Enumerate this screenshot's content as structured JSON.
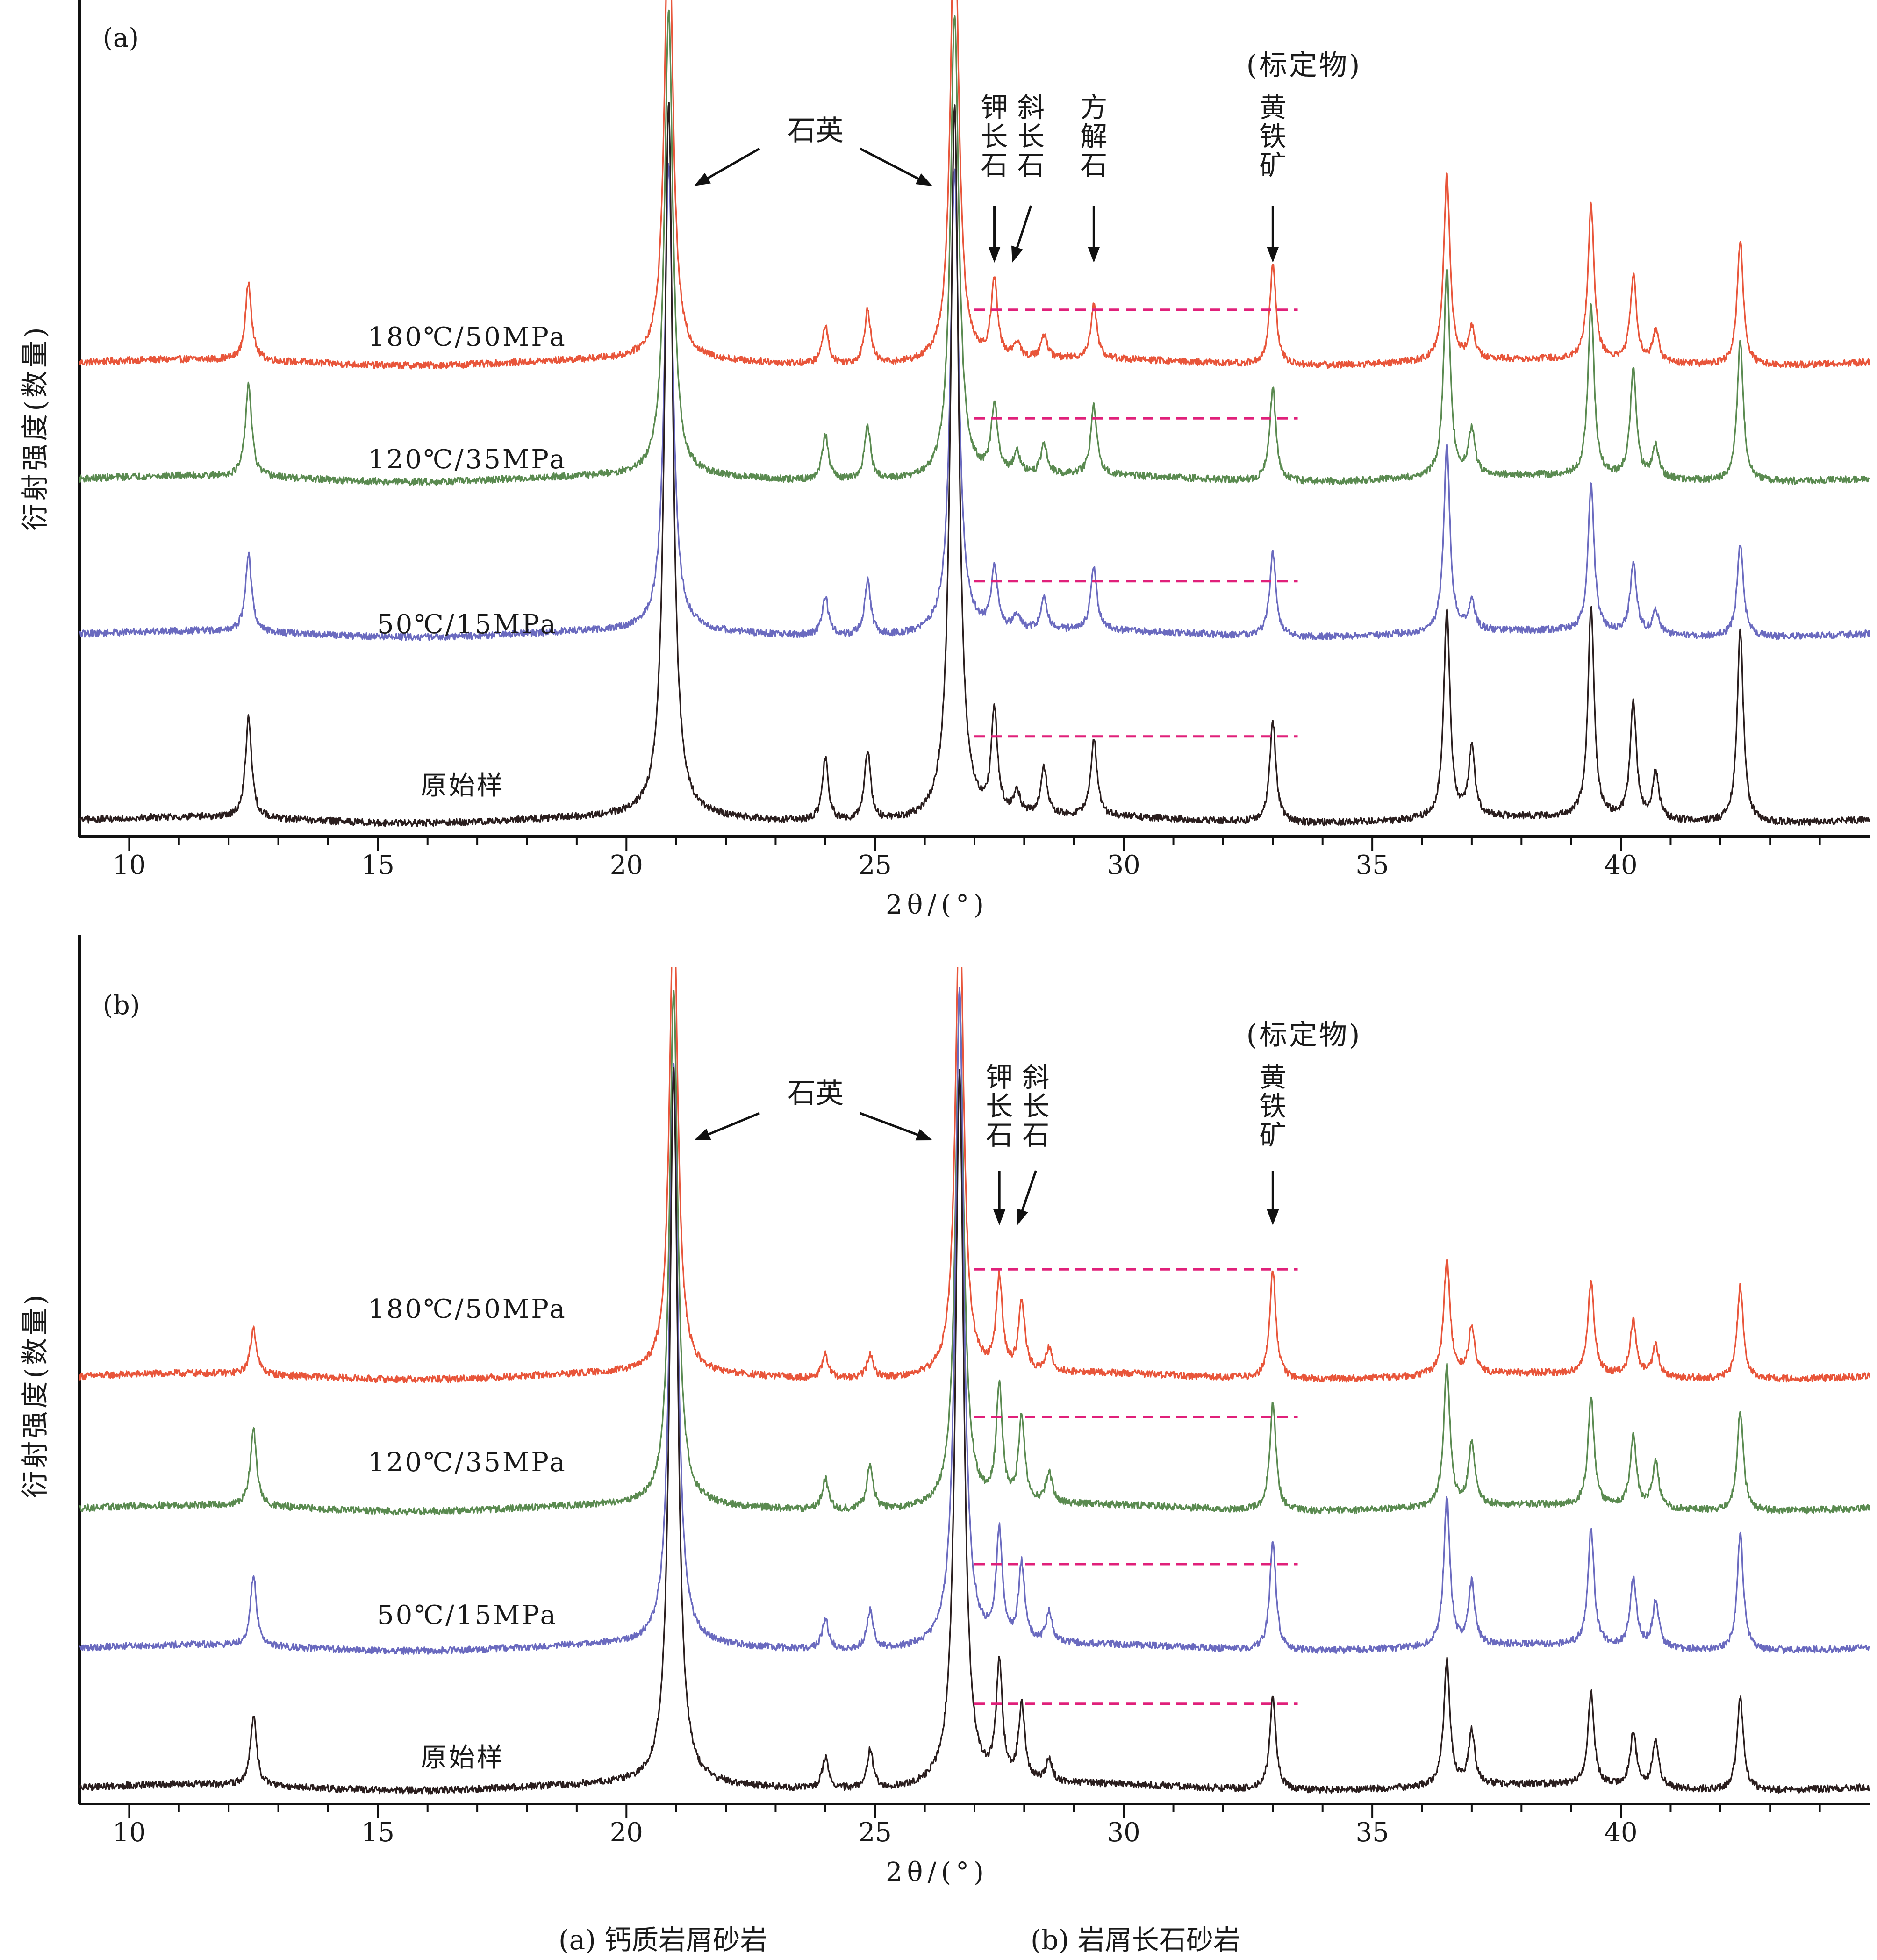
{
  "figure_caption": {
    "a": "(a) 钙质岩屑砂岩",
    "b": "(b) 岩屑长石砂岩"
  },
  "colors": {
    "180℃/50MPa": "#e8553a",
    "120℃/35MPa": "#5a8a50",
    "50℃/15MPa": "#6a6abf",
    "原始样": "#2a1e1e",
    "reference_line": "#e0207a"
  },
  "chart_data": [
    {
      "type": "line",
      "panel_label": "(a)",
      "xlabel": "2θ/(°)",
      "ylabel": "衍射强度(数量)",
      "xlim": [
        9,
        45
      ],
      "x_ticks": [
        10,
        15,
        20,
        25,
        30,
        35,
        40
      ],
      "stack_order_bottom_to_top": [
        "原始样",
        "50℃/15MPa",
        "120℃/35MPa",
        "180℃/50MPa"
      ],
      "baseline": {
        "180℃/50MPa": 0.59,
        "120℃/35MPa": 0.44,
        "50℃/15MPa": 0.24,
        "原始样": 0.0
      },
      "series": [
        {
          "name": "180℃/50MPa",
          "label": "180℃/50MPa",
          "baseline": 0.59,
          "peaks": [
            [
              12.4,
              0.1
            ],
            [
              20.85,
              0.6
            ],
            [
              24.0,
              0.05
            ],
            [
              24.85,
              0.07
            ],
            [
              26.6,
              0.6
            ],
            [
              27.4,
              0.1
            ],
            [
              27.85,
              0.02
            ],
            [
              28.4,
              0.03
            ],
            [
              29.4,
              0.07
            ],
            [
              33.0,
              0.13
            ],
            [
              36.5,
              0.24
            ],
            [
              37.0,
              0.04
            ],
            [
              39.4,
              0.2
            ],
            [
              40.25,
              0.11
            ],
            [
              40.7,
              0.04
            ],
            [
              42.4,
              0.16
            ]
          ]
        },
        {
          "name": "120℃/35MPa",
          "label": "120℃/35MPa",
          "baseline": 0.44,
          "peaks": [
            [
              12.4,
              0.12
            ],
            [
              20.85,
              0.6
            ],
            [
              24.0,
              0.06
            ],
            [
              24.85,
              0.07
            ],
            [
              26.6,
              0.6
            ],
            [
              27.4,
              0.09
            ],
            [
              27.85,
              0.03
            ],
            [
              28.4,
              0.04
            ],
            [
              29.4,
              0.09
            ],
            [
              33.0,
              0.12
            ],
            [
              36.5,
              0.27
            ],
            [
              37.0,
              0.06
            ],
            [
              39.4,
              0.22
            ],
            [
              40.25,
              0.14
            ],
            [
              40.7,
              0.04
            ],
            [
              42.4,
              0.18
            ]
          ]
        },
        {
          "name": "50℃/15MPa",
          "label": "50℃/15MPa",
          "baseline": 0.24,
          "peaks": [
            [
              12.4,
              0.1
            ],
            [
              20.85,
              0.6
            ],
            [
              24.0,
              0.05
            ],
            [
              24.85,
              0.07
            ],
            [
              26.6,
              0.6
            ],
            [
              27.4,
              0.08
            ],
            [
              27.85,
              0.02
            ],
            [
              28.4,
              0.04
            ],
            [
              29.4,
              0.08
            ],
            [
              33.0,
              0.11
            ],
            [
              36.5,
              0.24
            ],
            [
              37.0,
              0.04
            ],
            [
              39.4,
              0.19
            ],
            [
              40.25,
              0.09
            ],
            [
              40.7,
              0.03
            ],
            [
              42.4,
              0.12
            ]
          ]
        },
        {
          "name": "原始样",
          "label": "原始样",
          "baseline": 0.0,
          "peaks": [
            [
              12.4,
              0.13
            ],
            [
              20.85,
              0.92
            ],
            [
              24.0,
              0.08
            ],
            [
              24.85,
              0.09
            ],
            [
              26.6,
              0.92
            ],
            [
              27.4,
              0.13
            ],
            [
              27.85,
              0.03
            ],
            [
              28.4,
              0.06
            ],
            [
              29.4,
              0.1
            ],
            [
              33.0,
              0.13
            ],
            [
              36.5,
              0.27
            ],
            [
              37.0,
              0.09
            ],
            [
              39.4,
              0.27
            ],
            [
              40.25,
              0.15
            ],
            [
              40.7,
              0.06
            ],
            [
              42.4,
              0.25
            ]
          ]
        }
      ],
      "reference_lines": {
        "x_range": [
          27.0,
          33.5
        ],
        "y": [
          0.67,
          0.53,
          0.32,
          0.12
        ]
      },
      "annotations": {
        "quartz": "石英",
        "calibrant": "(标定物)",
        "minerals": [
          {
            "name": "钾长石",
            "chars": [
              "钾",
              "长",
              "石"
            ],
            "x": 27.4
          },
          {
            "name": "斜长石",
            "chars": [
              "斜",
              "长",
              "石"
            ],
            "x": 27.9
          },
          {
            "name": "方解石",
            "chars": [
              "方",
              "解",
              "石"
            ],
            "x": 29.4
          },
          {
            "name": "黄铁矿",
            "chars": [
              "黄",
              "铁",
              "矿"
            ],
            "x": 33.0
          }
        ]
      }
    },
    {
      "type": "line",
      "panel_label": "(b)",
      "xlabel": "2θ/(°)",
      "ylabel": "衍射强度(数量)",
      "xlim": [
        9,
        45
      ],
      "x_ticks": [
        10,
        15,
        20,
        25,
        30,
        35,
        40
      ],
      "stack_order_bottom_to_top": [
        "原始样",
        "50℃/15MPa",
        "120℃/35MPa",
        "180℃/50MPa"
      ],
      "baseline": {
        "180℃/50MPa": 0.53,
        "120℃/35MPa": 0.36,
        "50℃/15MPa": 0.18,
        "原始样": 0.0
      },
      "series": [
        {
          "name": "180℃/50MPa",
          "label": "180℃/50MPa",
          "baseline": 0.53,
          "peaks": [
            [
              12.5,
              0.06
            ],
            [
              20.95,
              0.62
            ],
            [
              24.0,
              0.03
            ],
            [
              24.9,
              0.03
            ],
            [
              26.7,
              0.62
            ],
            [
              27.5,
              0.12
            ],
            [
              27.95,
              0.09
            ],
            [
              28.5,
              0.03
            ],
            [
              33.0,
              0.14
            ],
            [
              36.5,
              0.15
            ],
            [
              37.0,
              0.06
            ],
            [
              39.4,
              0.12
            ],
            [
              40.25,
              0.07
            ],
            [
              40.7,
              0.04
            ],
            [
              42.4,
              0.12
            ]
          ]
        },
        {
          "name": "120℃/35MPa",
          "label": "120℃/35MPa",
          "baseline": 0.36,
          "peaks": [
            [
              12.5,
              0.1
            ],
            [
              20.95,
              0.66
            ],
            [
              24.0,
              0.04
            ],
            [
              24.9,
              0.06
            ],
            [
              26.7,
              0.66
            ],
            [
              27.5,
              0.15
            ],
            [
              27.95,
              0.11
            ],
            [
              28.5,
              0.04
            ],
            [
              33.0,
              0.14
            ],
            [
              36.5,
              0.18
            ],
            [
              37.0,
              0.08
            ],
            [
              39.4,
              0.14
            ],
            [
              40.25,
              0.09
            ],
            [
              40.7,
              0.06
            ],
            [
              42.4,
              0.13
            ]
          ]
        },
        {
          "name": "50℃/15MPa",
          "label": "50℃/15MPa",
          "baseline": 0.18,
          "peaks": [
            [
              12.5,
              0.09
            ],
            [
              20.95,
              0.75
            ],
            [
              24.0,
              0.04
            ],
            [
              24.9,
              0.05
            ],
            [
              26.7,
              0.85
            ],
            [
              27.5,
              0.14
            ],
            [
              27.95,
              0.1
            ],
            [
              28.5,
              0.04
            ],
            [
              33.0,
              0.14
            ],
            [
              36.5,
              0.19
            ],
            [
              37.0,
              0.08
            ],
            [
              39.4,
              0.15
            ],
            [
              40.25,
              0.09
            ],
            [
              40.7,
              0.06
            ],
            [
              42.4,
              0.15
            ]
          ]
        },
        {
          "name": "原始样",
          "label": "原始样",
          "baseline": 0.0,
          "peaks": [
            [
              12.5,
              0.09
            ],
            [
              20.95,
              0.92
            ],
            [
              24.0,
              0.04
            ],
            [
              24.9,
              0.05
            ],
            [
              26.7,
              0.92
            ],
            [
              27.5,
              0.15
            ],
            [
              27.95,
              0.1
            ],
            [
              28.5,
              0.03
            ],
            [
              33.0,
              0.12
            ],
            [
              36.5,
              0.16
            ],
            [
              37.0,
              0.07
            ],
            [
              39.4,
              0.12
            ],
            [
              40.25,
              0.07
            ],
            [
              40.7,
              0.06
            ],
            [
              42.4,
              0.12
            ]
          ]
        }
      ],
      "reference_lines": {
        "x_range": [
          27.0,
          33.5
        ],
        "y": [
          0.68,
          0.49,
          0.3,
          0.12
        ]
      },
      "annotations": {
        "quartz": "石英",
        "calibrant": "(标定物)",
        "minerals": [
          {
            "name": "钾长石",
            "chars": [
              "钾",
              "长",
              "石"
            ],
            "x": 27.5
          },
          {
            "name": "斜长石",
            "chars": [
              "斜",
              "长",
              "石"
            ],
            "x": 28.0
          },
          {
            "name": "黄铁矿",
            "chars": [
              "黄",
              "铁",
              "矿"
            ],
            "x": 33.0
          }
        ]
      }
    }
  ]
}
